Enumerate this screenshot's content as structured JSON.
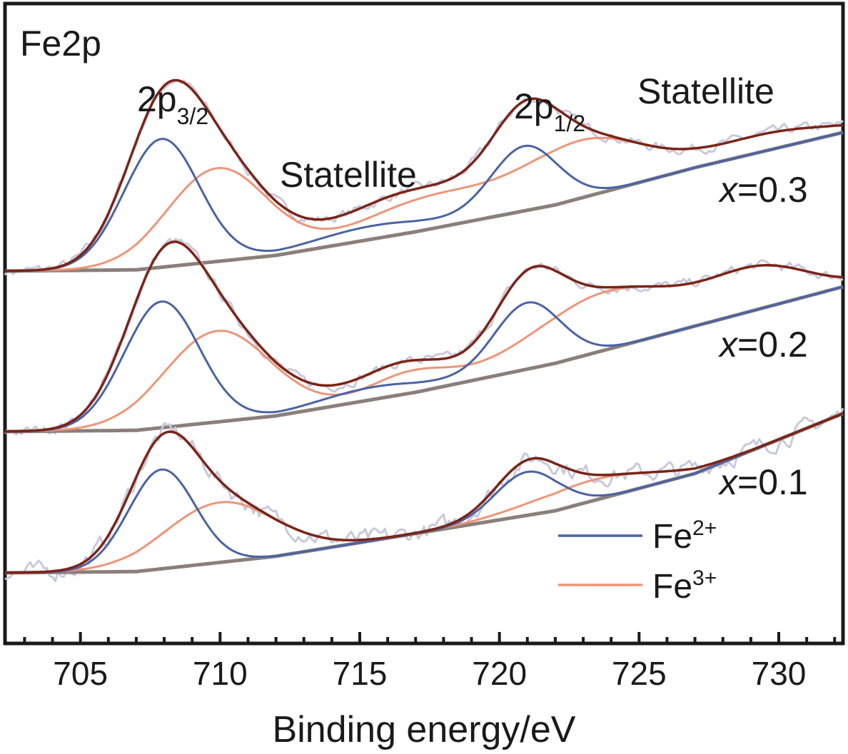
{
  "chart_data": {
    "type": "line",
    "panel_label": "Fe2p",
    "xlabel": "Binding energy/eV",
    "ylabel": "",
    "xlim": [
      702.3,
      732.3
    ],
    "x_ticks": [
      705,
      710,
      715,
      720,
      725,
      730
    ],
    "x_tick_labels": [
      "705",
      "710",
      "715",
      "720",
      "725",
      "730"
    ],
    "grid": false,
    "legend_position": "bottom-right",
    "annotations": {
      "p32_main": "2p",
      "p32_sub": "3/2",
      "p12_main": "2p",
      "p12_sub": "1/2",
      "satellite_1": "Statellite",
      "satellite_2": "Statellite"
    },
    "legend": [
      {
        "base": "Fe",
        "sup": "2+",
        "color": "#4a63a6"
      },
      {
        "base": "Fe",
        "sup": "3+",
        "color": "#ee9578"
      }
    ],
    "colors": {
      "raw": "#c9c9db",
      "envelope": "#7b2418",
      "fe2": "#4a63a6",
      "fe3": "#ee9578",
      "background": "#8a7f7a"
    },
    "samples": [
      {
        "label_var": "x",
        "label_rest": "=0.3",
        "baseline": [
          [
            702.3,
            0.0
          ],
          [
            707,
            0.03
          ],
          [
            712,
            0.38
          ],
          [
            717,
            0.95
          ],
          [
            722,
            1.6
          ],
          [
            727,
            2.5
          ],
          [
            732.3,
            3.35
          ]
        ],
        "fe2": [
          {
            "center": 707.9,
            "height": 3.1,
            "width": 1.35
          },
          {
            "center": 720.9,
            "height": 1.55,
            "width": 1.2
          },
          {
            "center": 715.5,
            "height": 0.32,
            "width": 2.2
          }
        ],
        "fe3": [
          {
            "center": 709.9,
            "height": 2.25,
            "width": 1.8
          },
          {
            "center": 717.4,
            "height": 0.75,
            "width": 2.3
          },
          {
            "center": 723.0,
            "height": 1.35,
            "width": 2.2
          },
          {
            "center": 729.5,
            "height": 0.4,
            "width": 2.2
          }
        ],
        "raw_noise": 0.22
      },
      {
        "label_var": "x",
        "label_rest": "=0.2",
        "baseline": [
          [
            702.3,
            0.0
          ],
          [
            707,
            0.03
          ],
          [
            712,
            0.38
          ],
          [
            717,
            0.95
          ],
          [
            722,
            1.65
          ],
          [
            727,
            2.55
          ],
          [
            732.3,
            3.5
          ]
        ],
        "fe2": [
          {
            "center": 707.9,
            "height": 3.05,
            "width": 1.35
          },
          {
            "center": 721.0,
            "height": 1.6,
            "width": 1.2
          },
          {
            "center": 715.5,
            "height": 0.3,
            "width": 2.0
          }
        ],
        "fe3": [
          {
            "center": 709.9,
            "height": 2.2,
            "width": 1.9
          },
          {
            "center": 716.8,
            "height": 0.5,
            "width": 1.4
          },
          {
            "center": 723.8,
            "height": 1.4,
            "width": 2.6
          },
          {
            "center": 729.3,
            "height": 0.9,
            "width": 1.8
          }
        ],
        "raw_noise": 0.22
      },
      {
        "label_var": "x",
        "label_rest": "=0.1",
        "baseline": [
          [
            702.3,
            0.0
          ],
          [
            707,
            0.03
          ],
          [
            712,
            0.4
          ],
          [
            717,
            0.95
          ],
          [
            722,
            1.5
          ],
          [
            727,
            2.4
          ],
          [
            732.3,
            3.85
          ]
        ],
        "fe2": [
          {
            "center": 707.9,
            "height": 2.4,
            "width": 1.2
          },
          {
            "center": 721.0,
            "height": 1.05,
            "width": 1.15
          }
        ],
        "fe3": [
          {
            "center": 710.0,
            "height": 1.45,
            "width": 2.0
          },
          {
            "center": 723.3,
            "height": 0.5,
            "width": 2.2
          }
        ],
        "raw_noise": 0.4
      }
    ]
  }
}
